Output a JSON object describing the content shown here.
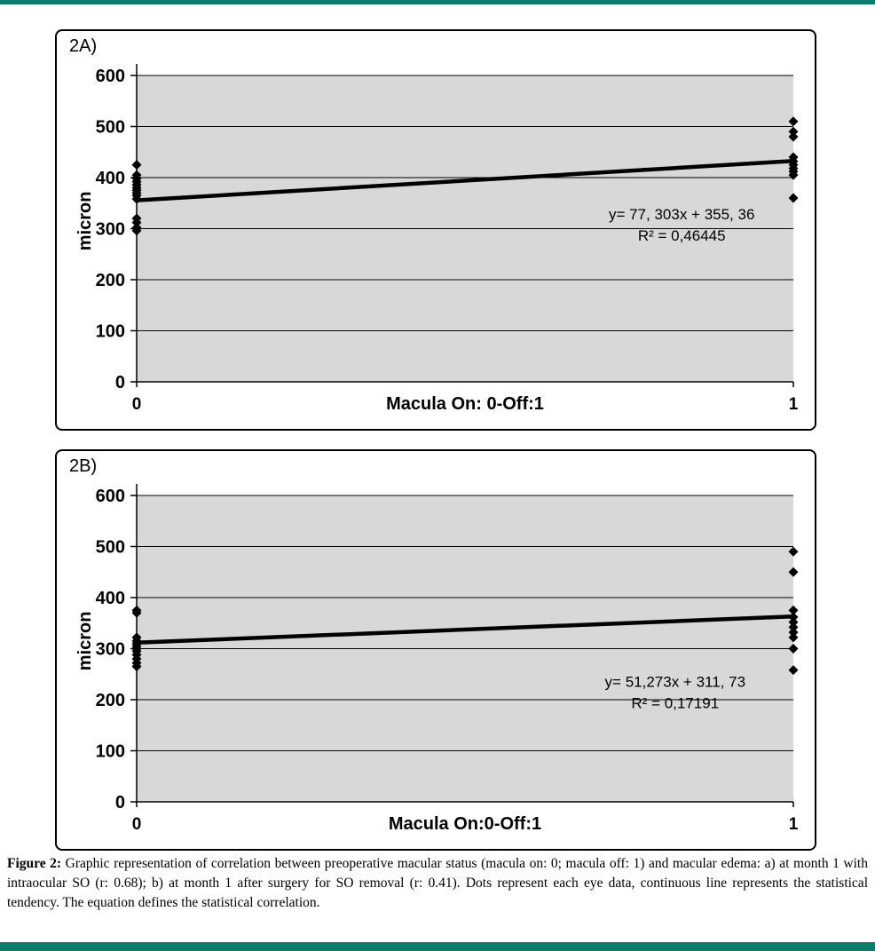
{
  "page": {
    "top_bar_color": "#0e7c6d",
    "bottom_bar_color": "#0e7c6d",
    "background_color": "#ffffff"
  },
  "caption": {
    "label": "Figure 2:",
    "text": " Graphic representation of correlation between preoperative macular status (macula on: 0; macula off: 1) and macular edema: a) at month 1 with intraocular SO (r: 0.68); b) at month 1 after surgery for SO removal (r: 0.41). Dots represent each eye data, continuous line represents the statistical tendency. The equation defines the statistical correlation."
  },
  "chart_data": [
    {
      "type": "scatter",
      "panel_label": "2A)",
      "ylabel": "micron",
      "xlabel": "Macula On: 0-Off:1",
      "ylim": [
        0,
        600
      ],
      "yticks": [
        0,
        100,
        200,
        300,
        400,
        500,
        600
      ],
      "xlim": [
        0,
        1
      ],
      "xticks": [
        0,
        1
      ],
      "grid": true,
      "plot_bg": "#d8d8d8",
      "marker": "diamond",
      "marker_color": "#000000",
      "points": [
        [
          0,
          425
        ],
        [
          0,
          405
        ],
        [
          0,
          398
        ],
        [
          0,
          392
        ],
        [
          0,
          386
        ],
        [
          0,
          380
        ],
        [
          0,
          375
        ],
        [
          0,
          370
        ],
        [
          0,
          365
        ],
        [
          0,
          358
        ],
        [
          0,
          320
        ],
        [
          0,
          312
        ],
        [
          0,
          302
        ],
        [
          0,
          296
        ],
        [
          1,
          510
        ],
        [
          1,
          490
        ],
        [
          1,
          480
        ],
        [
          1,
          440
        ],
        [
          1,
          432
        ],
        [
          1,
          425
        ],
        [
          1,
          418
        ],
        [
          1,
          412
        ],
        [
          1,
          405
        ],
        [
          1,
          360
        ]
      ],
      "trend": {
        "slope": 77.303,
        "intercept": 355.36
      },
      "annotation": {
        "line1": "y= 77, 303x + 355, 36",
        "line2": "R² = 0,46445",
        "x": 0.83,
        "y": 318
      }
    },
    {
      "type": "scatter",
      "panel_label": "2B)",
      "ylabel": "micron",
      "xlabel": "Macula On:0-Off:1",
      "ylim": [
        0,
        600
      ],
      "yticks": [
        0,
        100,
        200,
        300,
        400,
        500,
        600
      ],
      "xlim": [
        0,
        1
      ],
      "xticks": [
        0,
        1
      ],
      "grid": true,
      "plot_bg": "#d8d8d8",
      "marker": "diamond",
      "marker_color": "#000000",
      "points": [
        [
          0,
          375
        ],
        [
          0,
          370
        ],
        [
          0,
          322
        ],
        [
          0,
          315
        ],
        [
          0,
          310
        ],
        [
          0,
          305
        ],
        [
          0,
          300
        ],
        [
          0,
          295
        ],
        [
          0,
          288
        ],
        [
          0,
          280
        ],
        [
          0,
          272
        ],
        [
          0,
          265
        ],
        [
          1,
          490
        ],
        [
          1,
          450
        ],
        [
          1,
          375
        ],
        [
          1,
          362
        ],
        [
          1,
          352
        ],
        [
          1,
          342
        ],
        [
          1,
          332
        ],
        [
          1,
          322
        ],
        [
          1,
          300
        ],
        [
          1,
          258
        ]
      ],
      "trend": {
        "slope": 51.273,
        "intercept": 311.73
      },
      "annotation": {
        "line1": "y= 51,273x + 311, 73",
        "line2": "R² = 0,17191",
        "x": 0.82,
        "y": 225
      }
    }
  ]
}
